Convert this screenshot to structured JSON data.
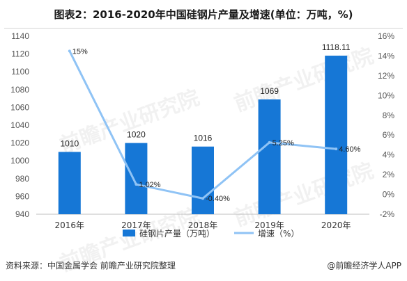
{
  "title": "图表2：2016-2020年中国硅钢片产量及增速(单位：万吨，%)",
  "source": "资料来源：中国金属学会 前瞻产业研究院整理",
  "brand": "@前瞻经济学人APP",
  "watermark": "前瞻产业研究院",
  "colors": {
    "bar": "#1677d6",
    "line": "#8fc3f5",
    "axis_text": "#555555"
  },
  "chart_data": {
    "type": "bar",
    "categories": [
      "2016年",
      "2017年",
      "2018年",
      "2019年",
      "2020年"
    ],
    "series": [
      {
        "name": "硅钢片产量（万吨）",
        "type": "bar",
        "axis": "left",
        "values": [
          1010,
          1020,
          1016,
          1069,
          1118.11
        ],
        "labels": [
          "1010",
          "1020",
          "1016",
          "1069",
          "1118.11"
        ]
      },
      {
        "name": "增速（%）",
        "type": "line",
        "axis": "right",
        "values": [
          14.5,
          1.02,
          -0.4,
          5.25,
          4.6
        ],
        "labels": [
          "15%",
          "1.02%",
          "-0.40%",
          "5.25%",
          "4.60%"
        ]
      }
    ],
    "ylim_left": [
      940,
      1140
    ],
    "yticks_left": [
      "940",
      "960",
      "980",
      "1000",
      "1020",
      "1040",
      "1060",
      "1080",
      "1100",
      "1120",
      "1140"
    ],
    "ylim_right": [
      -2,
      16
    ],
    "yticks_right": [
      "-2%",
      "0%",
      "2%",
      "4%",
      "6%",
      "8%",
      "10%",
      "12%",
      "14%",
      "16%"
    ],
    "grid": false,
    "legend": "bottom"
  }
}
